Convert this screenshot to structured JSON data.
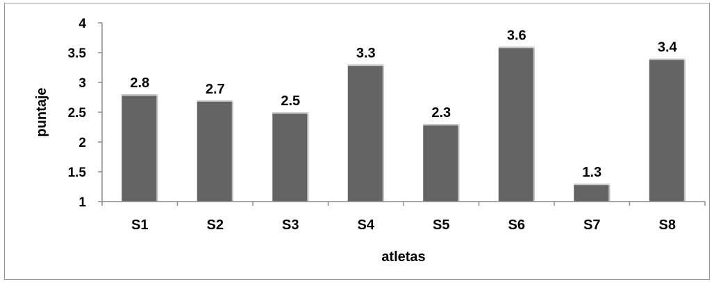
{
  "chart_data": {
    "type": "bar",
    "title": "",
    "xlabel": "atletas",
    "ylabel": "puntaje",
    "categories": [
      "S1",
      "S2",
      "S3",
      "S4",
      "S5",
      "S6",
      "S7",
      "S8"
    ],
    "values": [
      2.8,
      2.7,
      2.5,
      3.3,
      2.3,
      3.6,
      1.3,
      3.4
    ],
    "data_labels": [
      "2.8",
      "2.7",
      "2.5",
      "3.3",
      "2.3",
      "3.6",
      "1.3",
      "3.4"
    ],
    "ylim": [
      1,
      4
    ],
    "yticks": [
      1,
      1.5,
      2,
      2.5,
      3,
      3.5,
      4
    ],
    "ytick_labels": [
      "1",
      "1.5",
      "2",
      "2.5",
      "3",
      "3.5",
      "4"
    ],
    "grid": false,
    "legend": "none",
    "colors": {
      "bar": "#646464",
      "bar_highlight": "#e8e8e8",
      "axis": "#8c8c8c",
      "frame": "#9a9a9a"
    }
  }
}
